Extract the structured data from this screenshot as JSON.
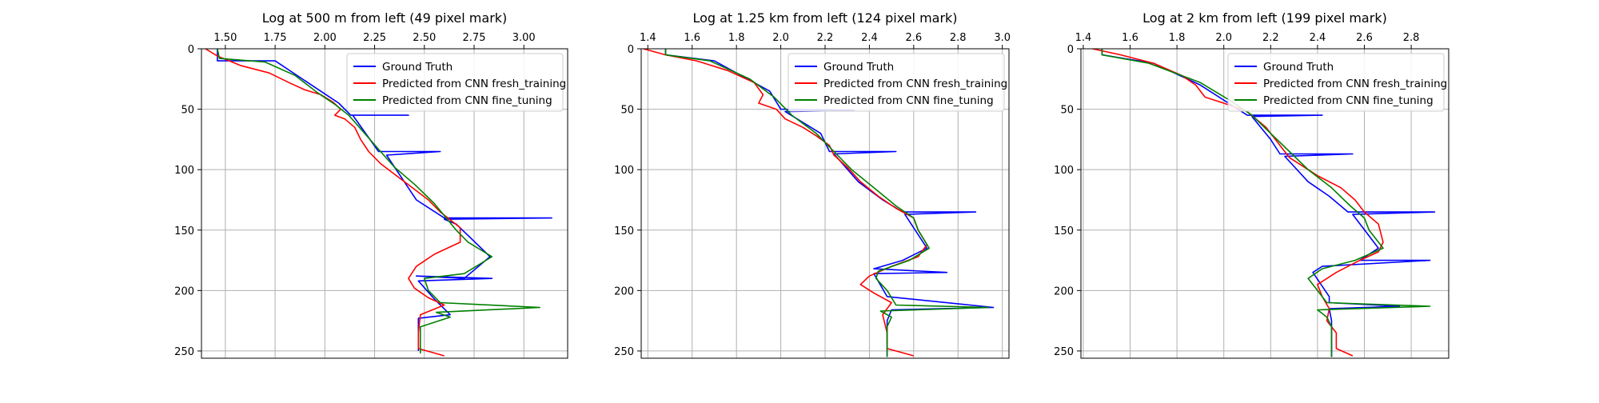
{
  "chart_data": [
    {
      "type": "line",
      "title": "Log at 500 m from left (49 pixel mark)",
      "xlim": [
        1.38,
        3.22
      ],
      "ylim": [
        256,
        0
      ],
      "x_ticks": [
        1.5,
        1.75,
        2.0,
        2.25,
        2.5,
        2.75,
        3.0
      ],
      "x_tick_labels": [
        "1.50",
        "1.75",
        "2.00",
        "2.25",
        "2.50",
        "2.75",
        "3.00"
      ],
      "y_ticks": [
        0,
        50,
        100,
        150,
        200,
        250
      ],
      "y_tick_labels": [
        "0",
        "50",
        "100",
        "150",
        "200",
        "250"
      ],
      "x_axis_position": "top",
      "y_axis_inverted": true,
      "grid": true,
      "legend_position": "top-right",
      "series": [
        {
          "name": "Ground Truth",
          "color": "#0000ff",
          "points": [
            [
              1.46,
              0
            ],
            [
              1.46,
              10
            ],
            [
              1.75,
              10
            ],
            [
              2.07,
              45
            ],
            [
              2.13,
              55
            ],
            [
              2.42,
              55
            ],
            [
              2.14,
              55
            ],
            [
              2.27,
              85
            ],
            [
              2.58,
              85
            ],
            [
              2.31,
              88
            ],
            [
              2.46,
              125
            ],
            [
              2.6,
              140
            ],
            [
              3.14,
              140
            ],
            [
              2.6,
              141
            ],
            [
              2.66,
              145
            ],
            [
              2.83,
              172
            ],
            [
              2.7,
              190
            ],
            [
              2.46,
              188
            ],
            [
              2.84,
              190
            ],
            [
              2.47,
              192
            ],
            [
              2.55,
              207
            ],
            [
              2.63,
              220
            ],
            [
              2.47,
              223
            ],
            [
              2.47,
              250
            ]
          ]
        },
        {
          "name": "Predicted from CNN fresh_training",
          "color": "#ff0000",
          "points": [
            [
              1.4,
              0
            ],
            [
              1.46,
              6
            ],
            [
              1.58,
              14
            ],
            [
              1.72,
              20
            ],
            [
              1.82,
              28
            ],
            [
              1.9,
              34
            ],
            [
              1.98,
              38
            ],
            [
              2.04,
              44
            ],
            [
              2.08,
              50
            ],
            [
              2.05,
              55
            ],
            [
              2.1,
              58
            ],
            [
              2.15,
              65
            ],
            [
              2.18,
              75
            ],
            [
              2.22,
              85
            ],
            [
              2.28,
              95
            ],
            [
              2.36,
              105
            ],
            [
              2.44,
              115
            ],
            [
              2.52,
              125
            ],
            [
              2.58,
              135
            ],
            [
              2.68,
              148
            ],
            [
              2.68,
              160
            ],
            [
              2.55,
              170
            ],
            [
              2.46,
              180
            ],
            [
              2.42,
              190
            ],
            [
              2.45,
              198
            ],
            [
              2.52,
              206
            ],
            [
              2.6,
              212
            ],
            [
              2.48,
              220
            ],
            [
              2.47,
              235
            ],
            [
              2.47,
              248
            ],
            [
              2.6,
              254
            ]
          ]
        },
        {
          "name": "Predicted from CNN fine_tuning",
          "color": "#008000",
          "points": [
            [
              1.46,
              0
            ],
            [
              1.47,
              8
            ],
            [
              1.7,
              11
            ],
            [
              1.85,
              22
            ],
            [
              1.96,
              36
            ],
            [
              2.05,
              46
            ],
            [
              2.12,
              55
            ],
            [
              2.2,
              70
            ],
            [
              2.28,
              85
            ],
            [
              2.35,
              98
            ],
            [
              2.45,
              112
            ],
            [
              2.55,
              128
            ],
            [
              2.62,
              142
            ],
            [
              2.66,
              150
            ],
            [
              2.72,
              160
            ],
            [
              2.84,
              172
            ],
            [
              2.7,
              186
            ],
            [
              2.5,
              190
            ],
            [
              2.52,
              200
            ],
            [
              2.58,
              210
            ],
            [
              3.08,
              214
            ],
            [
              2.56,
              218
            ],
            [
              2.63,
              222
            ],
            [
              2.48,
              230
            ],
            [
              2.48,
              252
            ]
          ]
        }
      ]
    },
    {
      "type": "line",
      "title": "Log at 1.25 km from left (124 pixel mark)",
      "xlim": [
        1.37,
        3.03
      ],
      "ylim": [
        256,
        0
      ],
      "x_ticks": [
        1.4,
        1.6,
        1.8,
        2.0,
        2.2,
        2.4,
        2.6,
        2.8,
        3.0
      ],
      "x_tick_labels": [
        "1.4",
        "1.6",
        "1.8",
        "2.0",
        "2.2",
        "2.4",
        "2.6",
        "2.8",
        "3.0"
      ],
      "y_ticks": [
        0,
        50,
        100,
        150,
        200,
        250
      ],
      "y_tick_labels": [
        "0",
        "50",
        "100",
        "150",
        "200",
        "250"
      ],
      "x_axis_position": "top",
      "y_axis_inverted": true,
      "grid": true,
      "legend_position": "top-right",
      "series": [
        {
          "name": "Ground Truth",
          "color": "#0000ff",
          "points": [
            [
              1.48,
              0
            ],
            [
              1.48,
              5
            ],
            [
              1.7,
              10
            ],
            [
              1.95,
              35
            ],
            [
              2.0,
              50
            ],
            [
              2.33,
              51
            ],
            [
              2.02,
              52
            ],
            [
              2.18,
              70
            ],
            [
              2.22,
              85
            ],
            [
              2.52,
              85
            ],
            [
              2.24,
              87
            ],
            [
              2.35,
              110
            ],
            [
              2.46,
              125
            ],
            [
              2.55,
              135
            ],
            [
              2.88,
              135
            ],
            [
              2.56,
              137
            ],
            [
              2.66,
              165
            ],
            [
              2.55,
              175
            ],
            [
              2.42,
              182
            ],
            [
              2.75,
              185
            ],
            [
              2.42,
              186
            ],
            [
              2.48,
              205
            ],
            [
              2.96,
              214
            ],
            [
              2.5,
              216
            ],
            [
              2.48,
              225
            ],
            [
              2.48,
              255
            ]
          ]
        },
        {
          "name": "Predicted from CNN fresh_training",
          "color": "#ff0000",
          "points": [
            [
              1.38,
              0
            ],
            [
              1.48,
              5
            ],
            [
              1.62,
              10
            ],
            [
              1.76,
              18
            ],
            [
              1.88,
              28
            ],
            [
              1.92,
              38
            ],
            [
              1.9,
              45
            ],
            [
              1.98,
              50
            ],
            [
              2.02,
              58
            ],
            [
              2.1,
              65
            ],
            [
              2.16,
              72
            ],
            [
              2.22,
              80
            ],
            [
              2.24,
              88
            ],
            [
              2.3,
              98
            ],
            [
              2.36,
              110
            ],
            [
              2.44,
              122
            ],
            [
              2.52,
              132
            ],
            [
              2.6,
              140
            ],
            [
              2.62,
              150
            ],
            [
              2.66,
              162
            ],
            [
              2.62,
              172
            ],
            [
              2.5,
              180
            ],
            [
              2.4,
              188
            ],
            [
              2.36,
              195
            ],
            [
              2.42,
              202
            ],
            [
              2.5,
              210
            ],
            [
              2.46,
              220
            ],
            [
              2.48,
              235
            ],
            [
              2.48,
              248
            ],
            [
              2.6,
              254
            ]
          ]
        },
        {
          "name": "Predicted from CNN fine_tuning",
          "color": "#008000",
          "points": [
            [
              1.48,
              0
            ],
            [
              1.48,
              5
            ],
            [
              1.68,
              10
            ],
            [
              1.86,
              25
            ],
            [
              1.97,
              40
            ],
            [
              2.05,
              55
            ],
            [
              2.16,
              70
            ],
            [
              2.24,
              85
            ],
            [
              2.32,
              100
            ],
            [
              2.42,
              115
            ],
            [
              2.52,
              130
            ],
            [
              2.6,
              140
            ],
            [
              2.62,
              150
            ],
            [
              2.67,
              165
            ],
            [
              2.58,
              175
            ],
            [
              2.44,
              184
            ],
            [
              2.43,
              190
            ],
            [
              2.48,
              200
            ],
            [
              2.52,
              212
            ],
            [
              2.94,
              214
            ],
            [
              2.45,
              217
            ],
            [
              2.5,
              222
            ],
            [
              2.48,
              230
            ],
            [
              2.48,
              255
            ]
          ]
        }
      ]
    },
    {
      "type": "line",
      "title": "Log at 2 km from left (199 pixel mark)",
      "xlim": [
        1.39,
        2.96
      ],
      "ylim": [
        256,
        0
      ],
      "x_ticks": [
        1.4,
        1.6,
        1.8,
        2.0,
        2.2,
        2.4,
        2.6,
        2.8
      ],
      "x_tick_labels": [
        "1.4",
        "1.6",
        "1.8",
        "2.0",
        "2.2",
        "2.4",
        "2.6",
        "2.8"
      ],
      "y_ticks": [
        0,
        50,
        100,
        150,
        200,
        250
      ],
      "y_tick_labels": [
        "0",
        "50",
        "100",
        "150",
        "200",
        "250"
      ],
      "x_axis_position": "top",
      "y_axis_inverted": true,
      "grid": true,
      "legend_position": "top-right",
      "series": [
        {
          "name": "Ground Truth",
          "color": "#0000ff",
          "points": [
            [
              1.48,
              0
            ],
            [
              1.48,
              5
            ],
            [
              1.7,
              12
            ],
            [
              1.9,
              30
            ],
            [
              2.02,
              45
            ],
            [
              2.1,
              55
            ],
            [
              2.42,
              55
            ],
            [
              2.12,
              56
            ],
            [
              2.2,
              75
            ],
            [
              2.24,
              87
            ],
            [
              2.55,
              87
            ],
            [
              2.26,
              89
            ],
            [
              2.36,
              110
            ],
            [
              2.45,
              122
            ],
            [
              2.53,
              135
            ],
            [
              2.9,
              135
            ],
            [
              2.55,
              137
            ],
            [
              2.66,
              165
            ],
            [
              2.58,
              175
            ],
            [
              2.88,
              175
            ],
            [
              2.42,
              180
            ],
            [
              2.38,
              185
            ],
            [
              2.45,
              205
            ],
            [
              2.45,
              210
            ],
            [
              2.75,
              213
            ],
            [
              2.45,
              215
            ],
            [
              2.46,
              225
            ],
            [
              2.46,
              255
            ]
          ]
        },
        {
          "name": "Predicted from CNN fresh_training",
          "color": "#ff0000",
          "points": [
            [
              1.44,
              0
            ],
            [
              1.56,
              5
            ],
            [
              1.7,
              12
            ],
            [
              1.82,
              22
            ],
            [
              1.88,
              30
            ],
            [
              1.92,
              40
            ],
            [
              2.0,
              45
            ],
            [
              2.1,
              52
            ],
            [
              2.18,
              65
            ],
            [
              2.22,
              75
            ],
            [
              2.28,
              90
            ],
            [
              2.4,
              105
            ],
            [
              2.5,
              115
            ],
            [
              2.56,
              125
            ],
            [
              2.6,
              135
            ],
            [
              2.66,
              145
            ],
            [
              2.68,
              160
            ],
            [
              2.66,
              168
            ],
            [
              2.58,
              175
            ],
            [
              2.48,
              185
            ],
            [
              2.4,
              195
            ],
            [
              2.42,
              205
            ],
            [
              2.45,
              215
            ],
            [
              2.44,
              225
            ],
            [
              2.48,
              235
            ],
            [
              2.48,
              248
            ],
            [
              2.55,
              254
            ]
          ]
        },
        {
          "name": "Predicted from CNN fine_tuning",
          "color": "#008000",
          "points": [
            [
              1.48,
              0
            ],
            [
              1.48,
              5
            ],
            [
              1.68,
              12
            ],
            [
              1.9,
              28
            ],
            [
              2.02,
              42
            ],
            [
              2.12,
              55
            ],
            [
              2.2,
              70
            ],
            [
              2.28,
              85
            ],
            [
              2.36,
              100
            ],
            [
              2.46,
              115
            ],
            [
              2.54,
              130
            ],
            [
              2.6,
              140
            ],
            [
              2.62,
              150
            ],
            [
              2.68,
              165
            ],
            [
              2.56,
              175
            ],
            [
              2.42,
              182
            ],
            [
              2.36,
              190
            ],
            [
              2.4,
              200
            ],
            [
              2.44,
              210
            ],
            [
              2.88,
              213
            ],
            [
              2.4,
              216
            ],
            [
              2.44,
              222
            ],
            [
              2.46,
              230
            ],
            [
              2.46,
              255
            ]
          ]
        }
      ]
    }
  ]
}
